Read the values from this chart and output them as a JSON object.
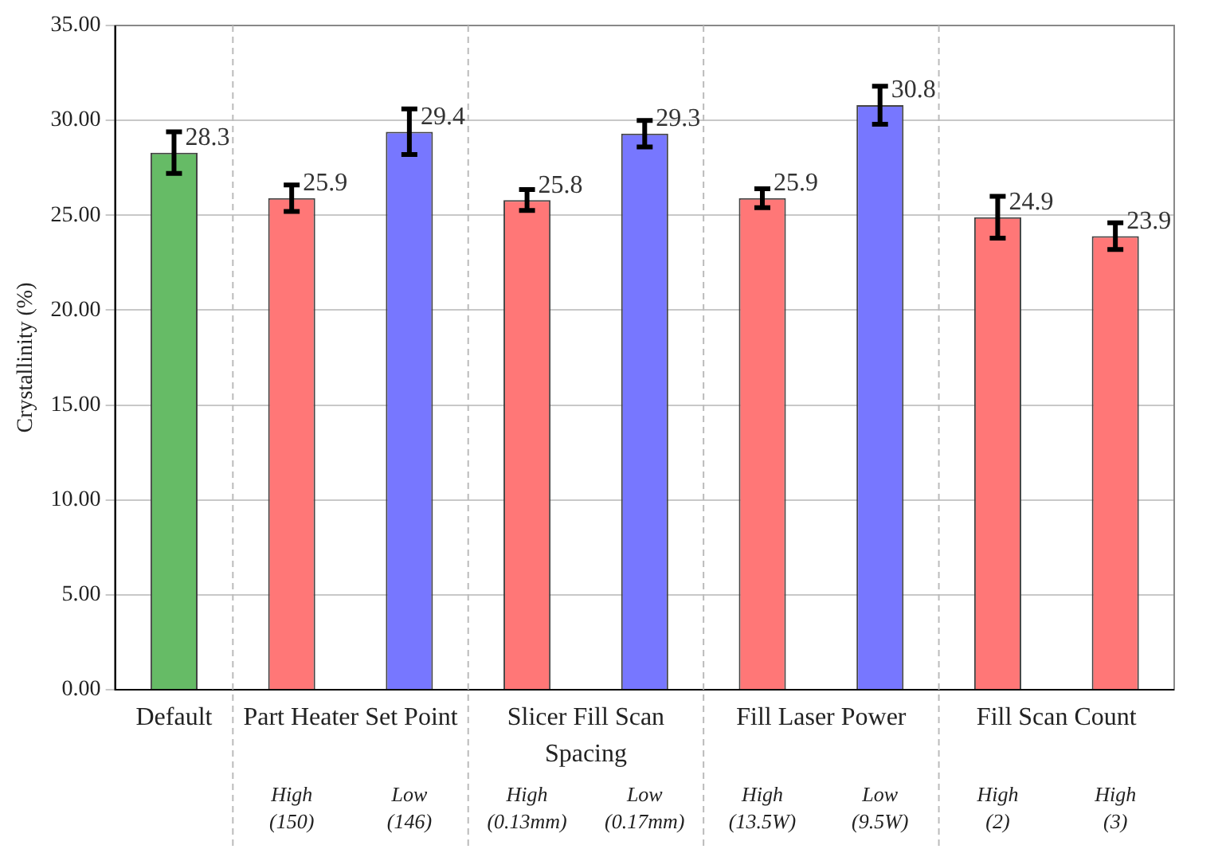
{
  "chart_data": {
    "type": "bar",
    "ylabel": "Crystallinity (%)",
    "categories": [
      null,
      "High (150)",
      "Low (146)",
      "High (0.13mm)",
      "Low (0.17mm)",
      "High (13.5W)",
      "Low (9.5W)",
      "High (2)",
      "High (3)"
    ],
    "values": [
      28.3,
      25.9,
      29.4,
      25.8,
      29.3,
      25.9,
      30.8,
      24.9,
      23.9
    ],
    "colors": [
      "#66bb66",
      "#ff7777",
      "#7777ff",
      "#ff7777",
      "#7777ff",
      "#ff7777",
      "#7777ff",
      "#ff7777",
      "#ff7777"
    ],
    "errors": [
      1.1,
      0.7,
      1.2,
      0.55,
      0.7,
      0.5,
      1.0,
      1.1,
      0.7
    ],
    "annotations": [
      "Default",
      "Part Heater Set Point",
      "Slicer Fill Scan Spacing",
      "Fill Laser Power",
      "Fill Scan Count"
    ],
    "data_labels": true,
    "grid": "y",
    "legend": false,
    "ylim": [
      0,
      35
    ],
    "yticks": [
      {
        "value": 0,
        "label": "0.00"
      },
      {
        "value": 5,
        "label": "5.00"
      },
      {
        "value": 10,
        "label": "10.00"
      },
      {
        "value": 15,
        "label": "15.00"
      },
      {
        "value": 20,
        "label": "20.00"
      },
      {
        "value": 25,
        "label": "25.00"
      },
      {
        "value": 30,
        "label": "30.00"
      },
      {
        "value": 35,
        "label": "35.00"
      }
    ]
  }
}
